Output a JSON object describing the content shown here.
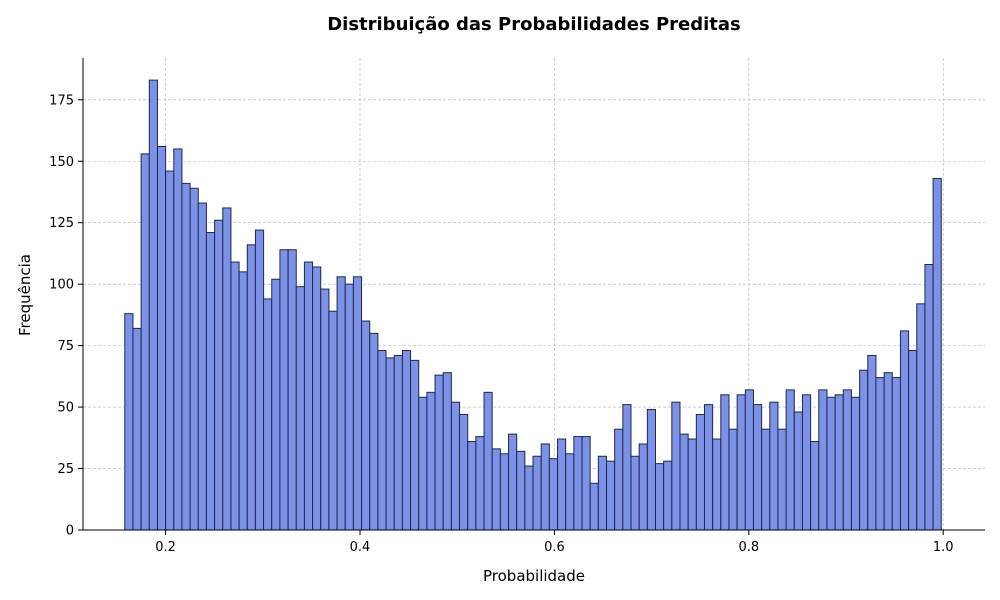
{
  "chart_data": {
    "type": "bar",
    "title": "Distribuição das Probabilidades Preditas",
    "xlabel": "Probabilidade",
    "ylabel": "Frequência",
    "xlim": [
      0.115,
      1.043
    ],
    "ylim": [
      0,
      192
    ],
    "xticks": [
      0.2,
      0.4,
      0.6,
      0.8,
      1.0
    ],
    "xtick_labels": [
      "0.2",
      "0.4",
      "0.6",
      "0.8",
      "1.0"
    ],
    "yticks": [
      0,
      25,
      50,
      75,
      100,
      125,
      150,
      175
    ],
    "ytick_labels": [
      "0",
      "25",
      "50",
      "75",
      "100",
      "125",
      "150",
      "175"
    ],
    "grid": true,
    "bin_start": 0.158,
    "bin_width": 0.0084,
    "bar_color": "#7b92e8",
    "edge_color": "#1f2a44",
    "values": [
      88,
      82,
      153,
      183,
      156,
      146,
      155,
      141,
      139,
      133,
      121,
      126,
      131,
      109,
      105,
      116,
      122,
      94,
      102,
      114,
      114,
      99,
      109,
      107,
      98,
      89,
      103,
      100,
      103,
      85,
      80,
      73,
      70,
      71,
      73,
      69,
      54,
      56,
      63,
      64,
      52,
      47,
      36,
      38,
      56,
      33,
      31,
      39,
      32,
      26,
      30,
      35,
      29,
      37,
      31,
      38,
      38,
      19,
      30,
      28,
      41,
      51,
      30,
      35,
      49,
      27,
      28,
      52,
      39,
      37,
      47,
      51,
      37,
      55,
      41,
      55,
      57,
      51,
      41,
      52,
      41,
      57,
      48,
      55,
      36,
      57,
      54,
      55,
      57,
      54,
      65,
      71,
      62,
      64,
      62,
      81,
      73,
      92,
      108,
      143
    ]
  }
}
